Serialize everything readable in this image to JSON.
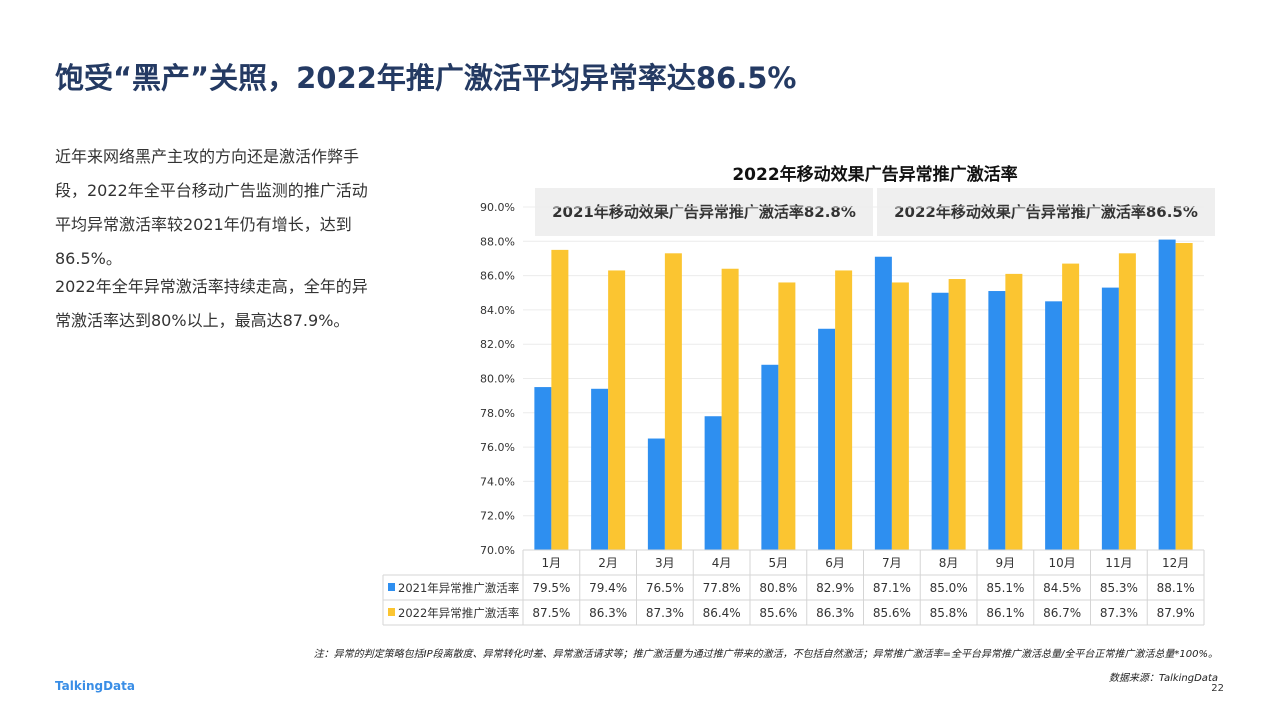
{
  "title": "饱受“黑产”关照，2022年推广激活平均异常率达86.5%",
  "paragraphs": [
    "近年来网络黑产主攻的方向还是激活作弊手段，2022年全平台移动广告监测的推广活动平均异常激活率较2021年仍有增长，达到86.5%。",
    "2022年全年异常激活率持续走高，全年的异常激活率达到80%以上，最高达87.9%。"
  ],
  "annotations": [
    "2021年移动效果广告异常推广激活率82.8%",
    "2022年移动效果广告异常推广激活率86.5%"
  ],
  "note": "注：异常的判定策略包括IP段离散度、异常转化时差、异常激活请求等；推广激活量为通过推广带来的激活，不包括自然激活；异常推广激活率=全平台异常推广激活总量/全平台正常推广激活总量*100%。",
  "source": "数据来源：TalkingData",
  "page_number": "22",
  "logo": "TalkingData",
  "chart_data": {
    "type": "bar",
    "title": "2022年移动效果广告异常推广激活率",
    "categories": [
      "1月",
      "2月",
      "3月",
      "4月",
      "5月",
      "6月",
      "7月",
      "8月",
      "9月",
      "10月",
      "11月",
      "12月"
    ],
    "series": [
      {
        "name": "2021年异常推广激活率",
        "color": "#2e8ff0",
        "values": [
          79.5,
          79.4,
          76.5,
          77.8,
          80.8,
          82.9,
          87.1,
          85.0,
          85.1,
          84.5,
          85.3,
          88.1
        ]
      },
      {
        "name": "2022年异常推广激活率",
        "color": "#fbc531",
        "values": [
          87.5,
          86.3,
          87.3,
          86.4,
          85.6,
          86.3,
          85.6,
          85.8,
          86.1,
          86.7,
          87.3,
          87.9
        ]
      }
    ],
    "ylim": [
      70,
      90
    ],
    "yticks": [
      "70.0%",
      "72.0%",
      "74.0%",
      "76.0%",
      "78.0%",
      "80.0%",
      "82.0%",
      "84.0%",
      "86.0%",
      "88.0%",
      "90.0%"
    ],
    "grid": true,
    "legend": "data-table"
  }
}
